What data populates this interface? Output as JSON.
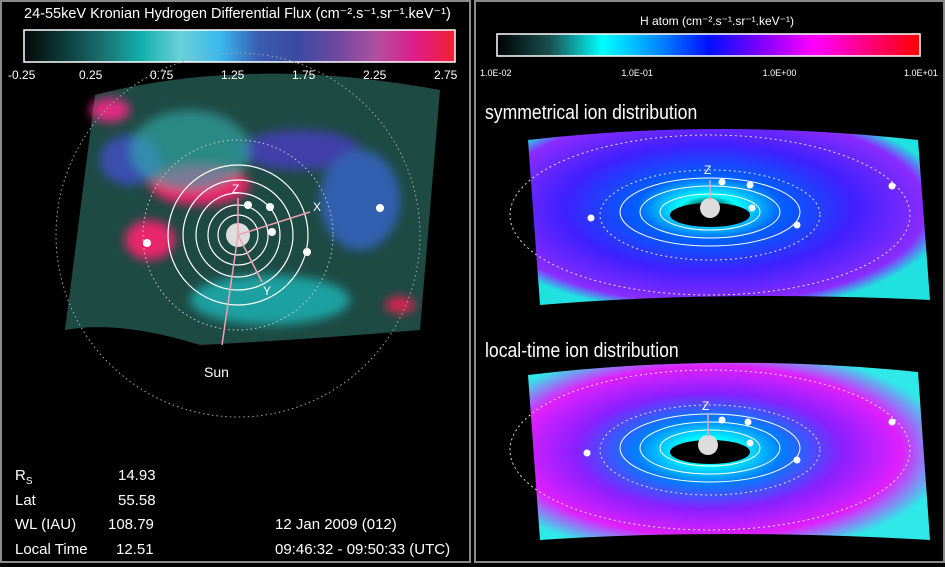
{
  "left_panel": {
    "colorbar": {
      "title": "24-55keV Kronian Hydrogen Differential Flux (cm⁻².s⁻¹.sr⁻¹.keV⁻¹)",
      "ticks": [
        "-0.25",
        "0.25",
        "0.75",
        "1.25",
        "1.75",
        "2.25",
        "2.75"
      ],
      "colors": [
        "#050808",
        "#0d3a38",
        "#1a7070",
        "#12b0ad",
        "#6ad0d8",
        "#3bb8ee",
        "#3a5cb0",
        "#3a4aa0",
        "#7048a0",
        "#b050a0",
        "#e01c88",
        "#f22030"
      ]
    },
    "axes": {
      "z": "Z",
      "x": "X",
      "y": "Y",
      "sun": "Sun"
    },
    "info": {
      "rs_label": "R",
      "rs_sub": "S",
      "rs_value": "14.93",
      "lat_label": "Lat",
      "lat_value": "55.58",
      "wl_label": "WL (IAU)",
      "wl_value": "108.79",
      "lt_label": "Local Time",
      "lt_value": "12.51",
      "date": "12 Jan 2009 (012)",
      "time": "09:46:32 - 09:50:33 (UTC)"
    }
  },
  "right_panel": {
    "colorbar": {
      "title": "H atom (cm⁻².s⁻¹.sr⁻¹.keV⁻¹)",
      "ticks": [
        "1.0E-02",
        "1.0E-01",
        "1.0E+00",
        "1.0E+01"
      ],
      "scale": "log",
      "colors": [
        "#000000",
        "#1a5050",
        "#00ffff",
        "#0090ff",
        "#0010ff",
        "#8000ff",
        "#ff00ff",
        "#ff0080",
        "#ff0000"
      ]
    },
    "top_label": "symmetrical ion distribution",
    "bottom_label": "local-time ion distribution",
    "axis_z": "Z"
  }
}
